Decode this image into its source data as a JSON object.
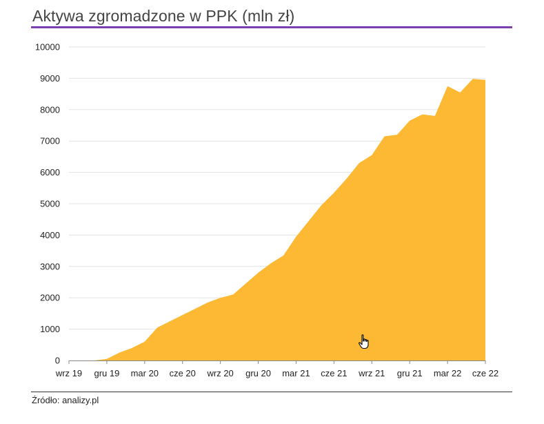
{
  "title": "Aktywa zgromadzone w PPK (mln zł)",
  "source": "Źródło: analizy.pl",
  "colors": {
    "area": "#FDB933",
    "title_rule": "#7B3FB0",
    "grid": "#E3E3E3",
    "axis": "#888888"
  },
  "chart_data": {
    "type": "area",
    "title": "Aktywa zgromadzone w PPK (mln zł)",
    "xlabel": "",
    "ylabel": "",
    "ylim": [
      0,
      10000
    ],
    "yticks": [
      "0",
      "1000",
      "2000",
      "3000",
      "4000",
      "5000",
      "6000",
      "7000",
      "8000",
      "9000",
      "10000"
    ],
    "xticks": [
      "wrz 19",
      "gru 19",
      "mar 20",
      "cze 20",
      "wrz 20",
      "gru 20",
      "mar 21",
      "cze 21",
      "wrz 21",
      "gru 21",
      "mar 22",
      "cze 22"
    ],
    "grid": "horizontal",
    "legend": "none",
    "series": [
      {
        "x": [
          "wrz 19",
          "paź 19",
          "lis 19",
          "gru 19",
          "sty 20",
          "lut 20",
          "mar 20",
          "kwi 20",
          "maj 20",
          "cze 20",
          "lip 20",
          "sie 20",
          "wrz 20",
          "paź 20",
          "lis 20",
          "gru 20",
          "sty 21",
          "lut 21",
          "mar 21",
          "kwi 21",
          "maj 21",
          "cze 21",
          "lip 21",
          "sie 21",
          "wrz 21",
          "paź 21",
          "lis 21",
          "gru 21",
          "sty 22",
          "lut 22",
          "mar 22",
          "kwi 22",
          "maj 22",
          "cze 22"
        ],
        "values": [
          0,
          0,
          0,
          50,
          250,
          400,
          600,
          1050,
          1250,
          1450,
          1650,
          1850,
          2000,
          2100,
          2450,
          2800,
          3100,
          3350,
          3950,
          4450,
          4950,
          5350,
          5800,
          6300,
          6550,
          7150,
          7200,
          7650,
          7850,
          7800,
          8750,
          8550,
          8980,
          8950
        ]
      }
    ]
  }
}
